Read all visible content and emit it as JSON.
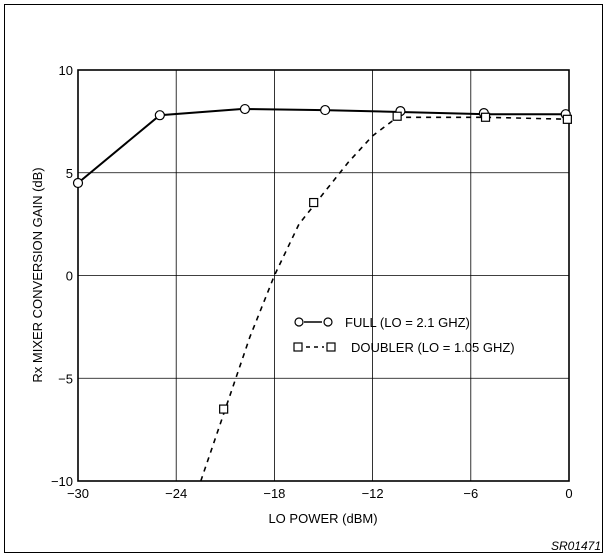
{
  "chart_data": {
    "type": "line",
    "xlabel": "LO POWER (dBM)",
    "ylabel": "Rx MIXER CONVERSION GAIN (dB)",
    "xlim": [
      -30,
      0
    ],
    "ylim": [
      -10,
      10
    ],
    "x_ticks": [
      -30,
      -24,
      -18,
      -12,
      -6,
      0
    ],
    "x_tick_labels": [
      "−30",
      "−24",
      "−18",
      "−12",
      "−6",
      "0"
    ],
    "y_ticks": [
      10,
      5,
      0,
      -5,
      -10
    ],
    "y_tick_labels": [
      "10",
      "5",
      "0",
      "−5",
      "−10"
    ],
    "grid": true,
    "legend_position": "center-right",
    "series": [
      {
        "name": "FULL (LO = 2.1 GHZ)",
        "marker": "circle",
        "line_style": "solid",
        "line": {
          "x": [
            -30,
            -25,
            -20,
            -15,
            -10,
            -5,
            0
          ],
          "y": [
            4.5,
            7.8,
            8.1,
            8.05,
            7.95,
            7.85,
            7.85
          ]
        },
        "markers": {
          "x": [
            -30,
            -25,
            -19.8,
            -14.9,
            -10.3,
            -5.2,
            -0.2
          ],
          "y": [
            4.5,
            7.8,
            8.1,
            8.05,
            8.0,
            7.9,
            7.85
          ]
        }
      },
      {
        "name": "DOUBLER (LO = 1.05 GHZ)",
        "marker": "square",
        "line_style": "dashed",
        "line": {
          "x": [
            -22.5,
            -21,
            -19.5,
            -18,
            -16.5,
            -15.5,
            -13.5,
            -12,
            -10.5,
            -5,
            0
          ],
          "y": [
            -10,
            -6.5,
            -3.0,
            0.0,
            2.5,
            3.5,
            5.5,
            6.8,
            7.7,
            7.7,
            7.6
          ]
        },
        "markers": {
          "x": [
            -21.1,
            -15.6,
            -10.5,
            -5.1,
            -0.1
          ],
          "y": [
            -6.5,
            3.55,
            7.75,
            7.7,
            7.6
          ]
        }
      }
    ],
    "figure_id": "SR01471"
  },
  "legend": {
    "full_label": "FULL (LO = 2.1 GHZ)",
    "doubler_label": "DOUBLER (LO = 1.05 GHZ)"
  }
}
